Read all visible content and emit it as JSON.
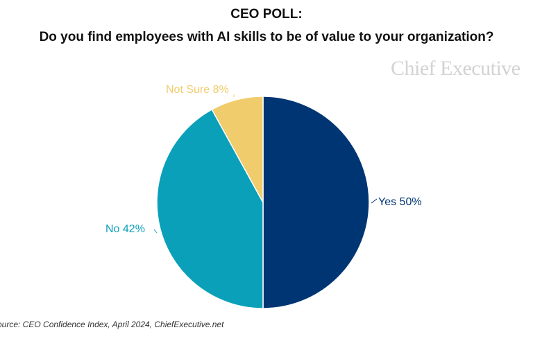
{
  "page": {
    "title": "CEO POLL:",
    "subtitle": "Do you find employees with AI skills to be of value to your organization?",
    "brand": "Chief Executive",
    "source": "ource: CEO Confidence Index, April 2024, ChiefExecutive.net"
  },
  "chart_data": {
    "type": "pie",
    "title": "CEO POLL:",
    "subtitle": "Do you find employees with AI skills to be of value to your organization?",
    "slices": [
      {
        "label": "Yes 50%",
        "name": "Yes",
        "value": 50,
        "color": "#003573",
        "label_color": "#003573"
      },
      {
        "label": "No 42%",
        "name": "No",
        "value": 42,
        "color": "#0aa0b9",
        "label_color": "#0aa0b9"
      },
      {
        "label": "Not Sure 8%",
        "name": "Not Sure",
        "value": 8,
        "color": "#f0cc6c",
        "label_color": "#f0cc6c"
      }
    ],
    "start": "12 o'clock, clockwise",
    "legend": "none",
    "slice_border_color": "#ffffff"
  }
}
